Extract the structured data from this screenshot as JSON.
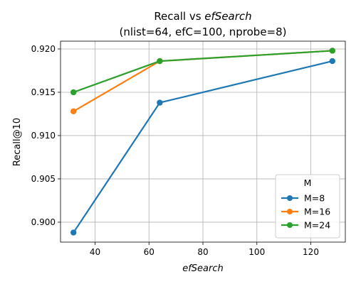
{
  "chart_data": {
    "type": "line",
    "title_line1_prefix": "Recall vs ",
    "title_line1_italic": "efSearch",
    "title_line2": "(nlist=64, efC=100, nprobe=8)",
    "xlabel": "efSearch",
    "ylabel": "Recall@10",
    "x": [
      32,
      64,
      128
    ],
    "xlim": [
      27.2,
      132.8
    ],
    "ylim": [
      0.8977,
      0.9209
    ],
    "xticks": [
      40,
      60,
      80,
      100,
      120
    ],
    "yticks": [
      0.9,
      0.905,
      0.91,
      0.915,
      0.92
    ],
    "ytick_labels": [
      "0.900",
      "0.905",
      "0.910",
      "0.915",
      "0.920"
    ],
    "grid": true,
    "legend_title": "M",
    "legend_position": "lower-right",
    "series": [
      {
        "name": "M=8",
        "color": "#1f77b4",
        "values": [
          0.8988,
          0.9138,
          0.9186
        ]
      },
      {
        "name": "M=16",
        "color": "#ff7f0e",
        "values": [
          0.9128,
          0.9186,
          0.9198
        ]
      },
      {
        "name": "M=24",
        "color": "#2ca02c",
        "values": [
          0.915,
          0.9186,
          0.9198
        ]
      }
    ]
  }
}
